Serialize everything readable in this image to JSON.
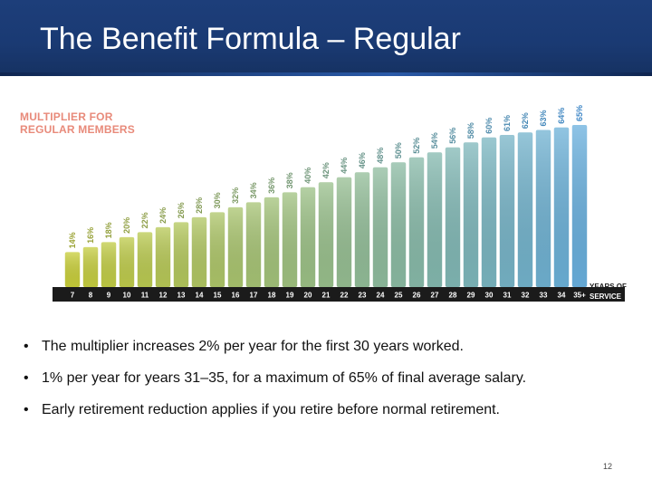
{
  "slide": {
    "title": "The Benefit Formula – Regular",
    "page_number": "12"
  },
  "chart_data": {
    "type": "bar",
    "title": "MULTIPLIER FOR REGULAR MEMBERS",
    "title_lines": [
      "MULTIPLIER FOR",
      "REGULAR MEMBERS"
    ],
    "xlabel": "YEARS OF SERVICE",
    "xlabel_lines": [
      "YEARS OF",
      "SERVICE"
    ],
    "categories": [
      "7",
      "8",
      "9",
      "10",
      "11",
      "12",
      "13",
      "14",
      "15",
      "16",
      "17",
      "18",
      "19",
      "20",
      "21",
      "22",
      "23",
      "24",
      "25",
      "26",
      "27",
      "28",
      "29",
      "30",
      "31",
      "32",
      "33",
      "34",
      "35+"
    ],
    "values": [
      14,
      16,
      18,
      20,
      22,
      24,
      26,
      28,
      30,
      32,
      34,
      36,
      38,
      40,
      42,
      44,
      46,
      48,
      50,
      52,
      54,
      56,
      58,
      60,
      61,
      62,
      63,
      64,
      65
    ],
    "data_labels": [
      "14%",
      "16%",
      "18%",
      "20%",
      "22%",
      "24%",
      "26%",
      "28%",
      "30%",
      "32%",
      "34%",
      "36%",
      "38%",
      "40%",
      "42%",
      "44%",
      "46%",
      "48%",
      "50%",
      "52%",
      "54%",
      "56%",
      "58%",
      "60%",
      "61%",
      "62%",
      "63%",
      "64%",
      "65%"
    ],
    "ylim": [
      0,
      65
    ],
    "grid": false,
    "colors": {
      "bar_start": "#c9cf3a",
      "bar_end": "#69b0de",
      "label_start": "#9aa232",
      "label_end": "#3d86c6",
      "axis_band": "#1b1b1b",
      "axis_text": "#ffffff"
    }
  },
  "bullets": [
    {
      "marker": "•",
      "text": "The multiplier increases 2% per year for the first 30 years worked."
    },
    {
      "marker": "•",
      "text": "1% per year for years 31–35, for a maximum of 65% of final average salary."
    },
    {
      "marker": "•",
      "text": "Early retirement reduction applies if you retire before normal retirement."
    }
  ]
}
